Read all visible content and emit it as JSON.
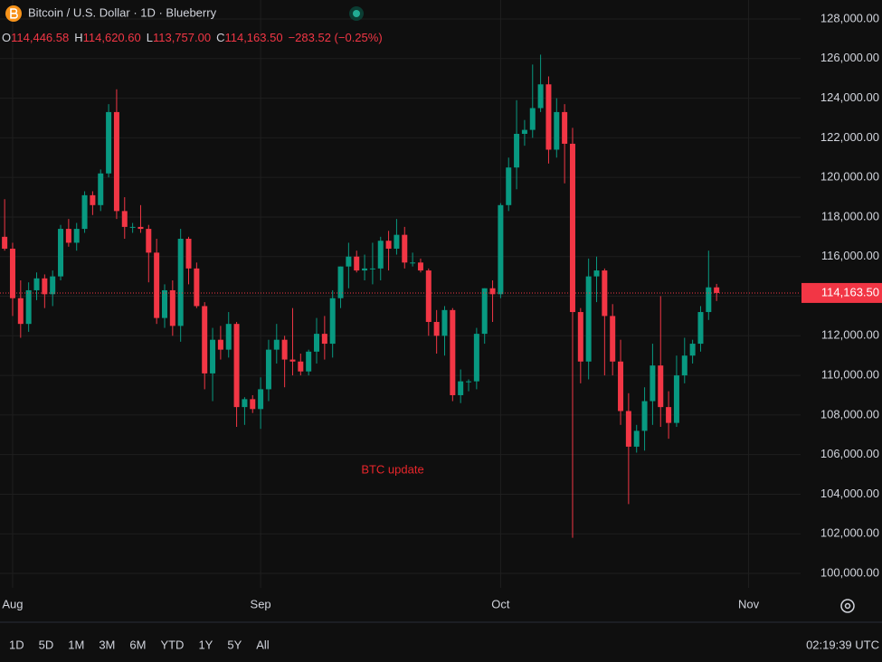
{
  "chart_data": {
    "type": "candlestick",
    "title": "Bitcoin / U.S. Dollar · 1D · Blueberry",
    "ohlc_prefixes": [
      "O",
      "H",
      "L",
      "C"
    ],
    "ohlc_labels": [
      "114,446.58",
      "114,620.60",
      "113,757.00",
      "114,163.50"
    ],
    "change_label": "−283.52 (−0.25%)",
    "last_price_label": "114,163.50",
    "annotation": "BTC update",
    "up_color": "#089981",
    "down_color": "#f23645",
    "grid": true,
    "x": [
      -1,
      0,
      1,
      2,
      3,
      4,
      5,
      6,
      7,
      8,
      9,
      10,
      11,
      12,
      13,
      14,
      15,
      16,
      17,
      18,
      19,
      20,
      21,
      22,
      23,
      24,
      25,
      26,
      27,
      28,
      29,
      30,
      31,
      32,
      33,
      34,
      35,
      36,
      37,
      38,
      39,
      40,
      41,
      42,
      43,
      44,
      45,
      46,
      47,
      48,
      49,
      50,
      51,
      52,
      53,
      54,
      55,
      56,
      57,
      58,
      59,
      60,
      61,
      62,
      63,
      64,
      65,
      66,
      67,
      68,
      69,
      70,
      71,
      72,
      73,
      74,
      75,
      76,
      77,
      78,
      79,
      80,
      81,
      82,
      83,
      84,
      85,
      86,
      87,
      88
    ],
    "open": [
      117000,
      116400,
      113900,
      112600,
      114300,
      114900,
      114100,
      115000,
      117400,
      116700,
      117400,
      119100,
      118600,
      120200,
      123300,
      118300,
      117500,
      117500,
      117400,
      116200,
      112900,
      114300,
      112500,
      116900,
      115400,
      113500,
      110100,
      111800,
      111300,
      112600,
      108400,
      108800,
      108300,
      109300,
      111300,
      111800,
      110800,
      110700,
      110200,
      111200,
      112100,
      111600,
      113900,
      115500,
      116000,
      115300,
      115400,
      115400,
      116800,
      116400,
      117100,
      115700,
      115700,
      115300,
      112700,
      112000,
      113300,
      109000,
      109700,
      109700,
      112100,
      114400,
      114100,
      118600,
      120500,
      122200,
      122400,
      123500,
      124700,
      121400,
      123300,
      121700,
      113200,
      110700,
      115000,
      115300,
      113000,
      110700,
      108200,
      106400,
      107200,
      108700,
      110500,
      108400,
      107600,
      110000,
      111000,
      111600,
      113200,
      114446.58
    ],
    "high": [
      118900,
      116700,
      114800,
      114700,
      115200,
      115100,
      115300,
      117600,
      117900,
      117700,
      119300,
      119300,
      120400,
      123700,
      124450,
      119000,
      117700,
      118600,
      117600,
      116900,
      114600,
      114800,
      117400,
      117000,
      115700,
      113700,
      112400,
      112500,
      113200,
      112700,
      108900,
      109000,
      109900,
      111800,
      112600,
      112000,
      113400,
      111100,
      111300,
      112900,
      113000,
      114300,
      115500,
      116700,
      116300,
      116100,
      116700,
      117000,
      117300,
      117900,
      117500,
      116200,
      115900,
      115400,
      113300,
      113500,
      113400,
      110300,
      109800,
      112400,
      114400,
      114800,
      118700,
      121000,
      123900,
      122900,
      125700,
      126200,
      125100,
      124000,
      123700,
      122500,
      113400,
      115900,
      116000,
      115400,
      113600,
      111800,
      109100,
      107500,
      109400,
      111600,
      114000,
      109200,
      111000,
      111900,
      111800,
      113500,
      116300,
      114620.6
    ],
    "low": [
      116300,
      113000,
      111900,
      112200,
      113800,
      113400,
      113500,
      114800,
      116500,
      116300,
      117200,
      118100,
      118300,
      120000,
      117900,
      116900,
      117200,
      117200,
      114700,
      112600,
      112400,
      112000,
      111700,
      114600,
      113400,
      109300,
      108700,
      110800,
      110900,
      107400,
      107500,
      108100,
      107300,
      108700,
      110600,
      109400,
      110000,
      110000,
      110000,
      110600,
      110800,
      110900,
      113400,
      114400,
      115200,
      114800,
      114600,
      114800,
      115300,
      116100,
      115400,
      115500,
      115200,
      112000,
      111100,
      111000,
      108700,
      108600,
      109200,
      109300,
      111600,
      112700,
      113900,
      118300,
      119400,
      121600,
      122000,
      123300,
      120700,
      121000,
      119700,
      101800,
      109600,
      109800,
      113700,
      110000,
      110000,
      107500,
      103500,
      106100,
      106200,
      107500,
      107400,
      106800,
      107400,
      109600,
      110600,
      111200,
      112800,
      113757
    ],
    "close": [
      116400,
      113900,
      112600,
      114300,
      114900,
      114100,
      115000,
      117400,
      116700,
      117400,
      119100,
      118600,
      120200,
      123300,
      118300,
      117500,
      117500,
      117400,
      116200,
      112900,
      114300,
      112500,
      116900,
      115400,
      113500,
      110100,
      111800,
      111300,
      112600,
      108400,
      108800,
      108300,
      109300,
      111300,
      111800,
      110800,
      110700,
      110200,
      111200,
      112100,
      111600,
      113900,
      115500,
      116000,
      115300,
      115400,
      115400,
      116800,
      116400,
      117100,
      115700,
      115700,
      115300,
      112700,
      112000,
      113300,
      109000,
      109700,
      109700,
      112100,
      114400,
      114100,
      118600,
      120500,
      122200,
      122400,
      123500,
      124700,
      121400,
      123300,
      121700,
      113200,
      110700,
      115000,
      115300,
      113000,
      110700,
      108200,
      106400,
      107200,
      108700,
      110500,
      108400,
      107600,
      110000,
      111000,
      111600,
      113200,
      114447.02,
      114163.5
    ],
    "xlim": [
      -1.58,
      98.5
    ],
    "xticks": [
      {
        "value": 0,
        "label": "Aug"
      },
      {
        "value": 31,
        "label": "Sep"
      },
      {
        "value": 61,
        "label": "Oct"
      },
      {
        "value": 92,
        "label": "Nov"
      }
    ],
    "ylim": [
      99270,
      128960
    ],
    "yticks": [
      {
        "value": 100000,
        "label": "100,000.00"
      },
      {
        "value": 102000,
        "label": "102,000.00"
      },
      {
        "value": 104000,
        "label": "104,000.00"
      },
      {
        "value": 106000,
        "label": "106,000.00"
      },
      {
        "value": 108000,
        "label": "108,000.00"
      },
      {
        "value": 110000,
        "label": "110,000.00"
      },
      {
        "value": 112000,
        "label": "112,000.00"
      },
      {
        "value": 114000,
        "label": "114,000.00"
      },
      {
        "value": 116000,
        "label": "116,000.00"
      },
      {
        "value": 118000,
        "label": "118,000.00"
      },
      {
        "value": 120000,
        "label": "120,000.00"
      },
      {
        "value": 122000,
        "label": "122,000.00"
      },
      {
        "value": 124000,
        "label": "124,000.00"
      },
      {
        "value": 126000,
        "label": "126,000.00"
      },
      {
        "value": 128000,
        "label": "128,000.00"
      }
    ],
    "range_buttons": [
      "1D",
      "5D",
      "1M",
      "3M",
      "6M",
      "YTD",
      "1Y",
      "5Y",
      "All"
    ],
    "clock": "02:19:39 UTC"
  }
}
